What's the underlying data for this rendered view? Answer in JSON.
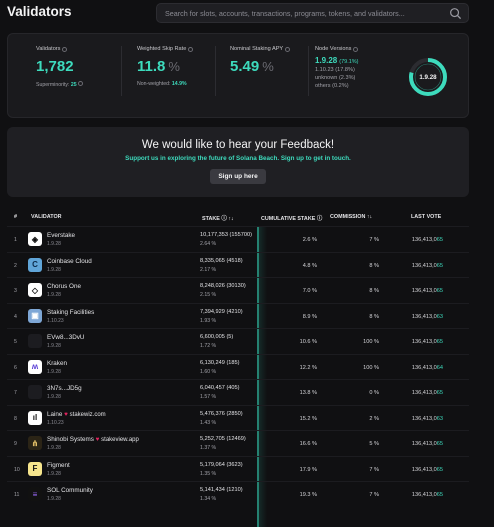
{
  "header": {
    "title": "Validators",
    "search_placeholder": "Search for slots, accounts, transactions, programs, tokens, and validators..."
  },
  "stats": {
    "validators": {
      "label": "Validators",
      "value": "1,782",
      "sub_label": "Superminority:",
      "sub_value": "25"
    },
    "skip_rate": {
      "label": "Weighted Skip Rate",
      "value": "11.8",
      "unit": "%",
      "sub_label": "Non-weighted:",
      "sub_value": "14.9%"
    },
    "apy": {
      "label": "Nominal Staking APY",
      "value": "5.49",
      "unit": "%"
    },
    "versions": {
      "label": "Node Versions",
      "main": "1.9.28",
      "main_pct": "(79.1%)",
      "lines": [
        "1.10.23 (17.8%)",
        "unknown (2.3%)",
        "others (0.2%)"
      ],
      "donut_label": "1.9.28",
      "donut_fraction": 0.791
    }
  },
  "feedback": {
    "title": "We would like to hear your Feedback!",
    "subtitle": "Support us in exploring the future of Solana Beach. Sign up to get in touch.",
    "button": "Sign up here"
  },
  "table": {
    "headers": {
      "num": "#",
      "validator": "VALIDATOR",
      "stake": "STAKE",
      "cum": "CUMULATIVE STAKE",
      "comm": "COMMISSION",
      "vote": "LAST VOTE"
    },
    "rows": [
      {
        "num": "1",
        "name": "Everstake",
        "ver": "1.9.28",
        "stake": "10,177,353 (155700)",
        "pct": "2.64 %",
        "cum": "2.6 %",
        "comm": "7 %",
        "vote_a": "136,413,0",
        "vote_b": "65",
        "avatar": "◈",
        "bg": "#ffffff",
        "fg": "#111111"
      },
      {
        "num": "2",
        "name": "Coinbase Cloud",
        "ver": "1.9.28",
        "stake": "8,335,065 (4518)",
        "pct": "2.17 %",
        "cum": "4.8 %",
        "comm": "8 %",
        "vote_a": "136,413,0",
        "vote_b": "65",
        "avatar": "C",
        "bg": "#60a5d8",
        "fg": "#0b2a4a"
      },
      {
        "num": "3",
        "name": "Chorus One",
        "ver": "1.9.28",
        "stake": "8,248,026 (30130)",
        "pct": "2.15 %",
        "cum": "7.0 %",
        "comm": "8 %",
        "vote_a": "136,413,0",
        "vote_b": "65",
        "avatar": "◇",
        "bg": "#ffffff",
        "fg": "#111111"
      },
      {
        "num": "4",
        "name": "Staking Facilities",
        "ver": "1.10.23",
        "stake": "7,394,929 (4210)",
        "pct": "1.93 %",
        "cum": "8.9 %",
        "comm": "8 %",
        "vote_a": "136,413,0",
        "vote_b": "63",
        "avatar": "▣",
        "bg": "#7ea7d6",
        "fg": "#ffffff"
      },
      {
        "num": "5",
        "name": "EVw8...3DvU",
        "ver": "1.9.28",
        "stake": "6,600,005 (5)",
        "pct": "1.72 %",
        "cum": "10.6 %",
        "comm": "100 %",
        "vote_a": "136,413,0",
        "vote_b": "65",
        "avatar": "",
        "bg": "#1c1c20",
        "fg": "#1c1c20"
      },
      {
        "num": "6",
        "name": "Kraken",
        "ver": "1.9.28",
        "stake": "6,130,249 (185)",
        "pct": "1.60 %",
        "cum": "12.2 %",
        "comm": "100 %",
        "vote_a": "136,413,0",
        "vote_b": "64",
        "avatar": "ʍ",
        "bg": "#ffffff",
        "fg": "#5b3fd6"
      },
      {
        "num": "7",
        "name": "3N7s...JD5g",
        "ver": "1.9.28",
        "stake": "6,040,457 (405)",
        "pct": "1.57 %",
        "cum": "13.8 %",
        "comm": "0 %",
        "vote_a": "136,413,0",
        "vote_b": "65",
        "avatar": "",
        "bg": "#1c1c20",
        "fg": "#1c1c20"
      },
      {
        "num": "8",
        "name": "Laine",
        "tag": "stakewiz.com",
        "ver": "1.10.23",
        "stake": "5,476,376 (2850)",
        "pct": "1.43 %",
        "cum": "15.2 %",
        "comm": "2 %",
        "vote_a": "136,413,0",
        "vote_b": "63",
        "avatar": "ıl",
        "bg": "#ffffff",
        "fg": "#111111"
      },
      {
        "num": "9",
        "name": "Shinobi Systems",
        "tag": "stakeview.app",
        "ver": "1.9.28",
        "stake": "5,252,705 (12469)",
        "pct": "1.37 %",
        "cum": "16.6 %",
        "comm": "5 %",
        "vote_a": "136,413,0",
        "vote_b": "65",
        "avatar": "⋔",
        "bg": "#2b2416",
        "fg": "#e7c36a"
      },
      {
        "num": "10",
        "name": "Figment",
        "ver": "1.9.28",
        "stake": "5,179,064 (3623)",
        "pct": "1.35 %",
        "cum": "17.9 %",
        "comm": "7 %",
        "vote_a": "136,413,0",
        "vote_b": "65",
        "avatar": "F",
        "bg": "#f6e58d",
        "fg": "#111111"
      },
      {
        "num": "11",
        "name": "SOL Community",
        "ver": "1.9.28",
        "stake": "5,141,434 (1210)",
        "pct": "1.34 %",
        "cum": "19.3 %",
        "comm": "7 %",
        "vote_a": "136,413,0",
        "vote_b": "65",
        "avatar": "≡",
        "bg": "#111111",
        "fg": "#9d6bff"
      }
    ]
  }
}
